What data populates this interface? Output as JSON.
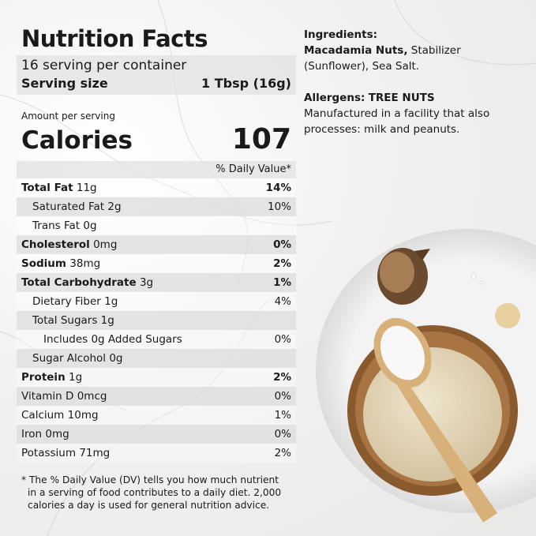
{
  "nutrition": {
    "title": "Nutrition Facts",
    "servings": "16 serving per container",
    "serving_size": {
      "label": "Serving size",
      "value": "1 Tbsp (16g)"
    },
    "amount_per_serving": "Amount per serving",
    "calories": {
      "label": "Calories",
      "value": "107"
    },
    "daily_value_header": "% Daily Value*",
    "rows": [
      {
        "name": "Total Fat",
        "amount": "11g",
        "dv": "14%",
        "bold": true,
        "indent": 0
      },
      {
        "name": "Saturated Fat",
        "amount": "2g",
        "dv": "10%",
        "bold": false,
        "indent": 1
      },
      {
        "name": "Trans Fat",
        "amount": "0g",
        "dv": null,
        "bold": false,
        "indent": 1
      },
      {
        "name": "Cholesterol",
        "amount": "0mg",
        "dv": "0%",
        "bold": true,
        "indent": 0
      },
      {
        "name": "Sodium",
        "amount": "38mg",
        "dv": "2%",
        "bold": true,
        "indent": 0
      },
      {
        "name": "Total Carbohydrate",
        "amount": "3g",
        "dv": "1%",
        "bold": true,
        "indent": 0
      },
      {
        "name": "Dietary Fiber",
        "amount": "1g",
        "dv": "4%",
        "bold": false,
        "indent": 1
      },
      {
        "name": "Total Sugars",
        "amount": "1g",
        "dv": null,
        "bold": false,
        "indent": 1
      },
      {
        "name": "Includes 0g Added Sugars",
        "amount": null,
        "dv": "0%",
        "bold": false,
        "indent": 2
      },
      {
        "name": "Sugar Alcohol",
        "amount": "0g",
        "dv": null,
        "bold": false,
        "indent": 1
      },
      {
        "name": "Protein",
        "amount": "1g",
        "dv": "2%",
        "bold": true,
        "indent": 0
      },
      {
        "name": "Vitamin D",
        "amount": "0mcg",
        "dv": "0%",
        "bold": false,
        "indent": 0
      },
      {
        "name": "Calcium",
        "amount": "10mg",
        "dv": "1%",
        "bold": false,
        "indent": 0
      },
      {
        "name": "Iron",
        "amount": "0mg",
        "dv": "0%",
        "bold": false,
        "indent": 0
      },
      {
        "name": "Potassium",
        "amount": "71mg",
        "dv": "2%",
        "bold": false,
        "indent": 0
      }
    ],
    "footnote": "* The % Daily Value (DV) tells you how much nutrient in a serving of food contributes to a daily diet. 2,000 calories a day is used for general nutrition advice."
  },
  "ingredients": {
    "label": "Ingredients:",
    "highlight": "Macadamia Nuts,",
    "rest": "Stabilizer (Sunflower), Sea Salt."
  },
  "allergens": {
    "label": "Allergens:",
    "value": "TREE NUTS",
    "note": "Manufactured in a facility that also processes: milk and peanuts."
  }
}
